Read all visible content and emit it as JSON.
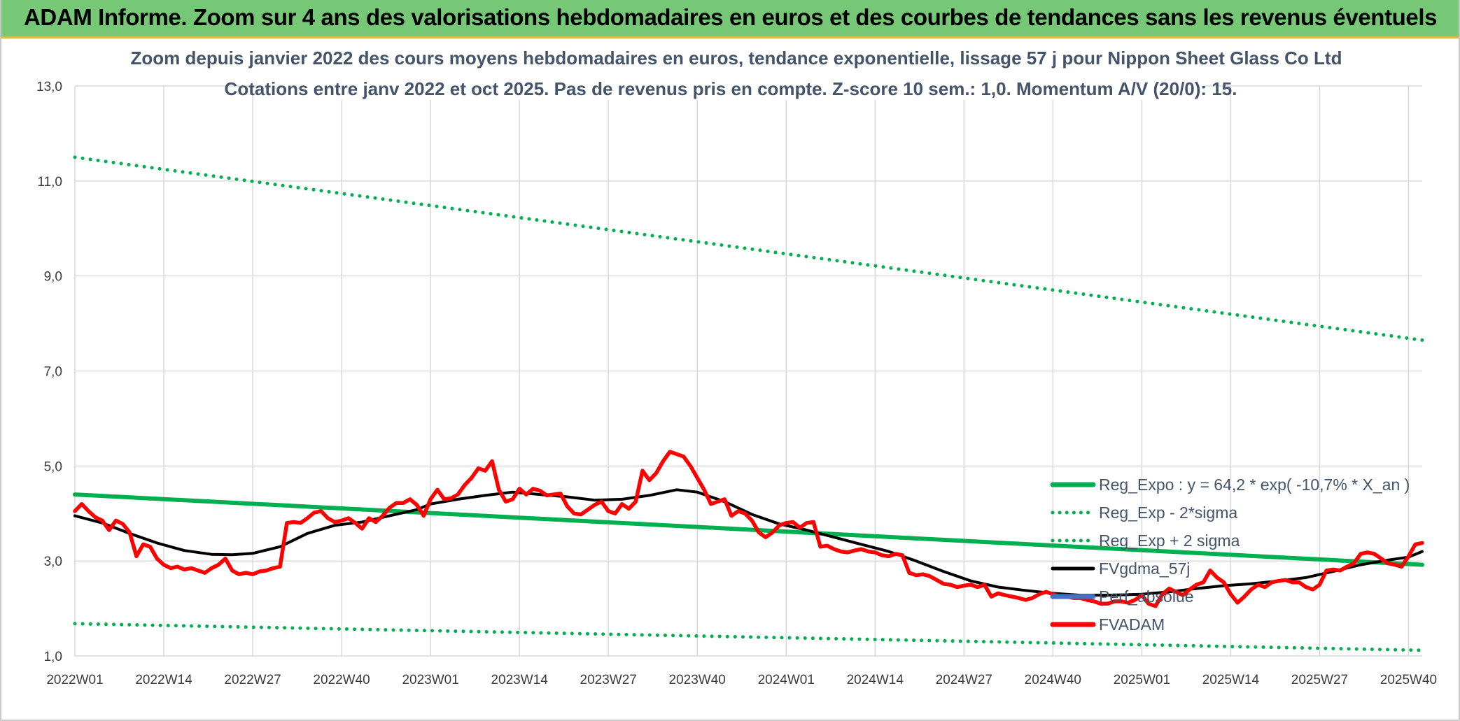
{
  "banner": {
    "title": "ADAM Informe. Zoom sur 4 ans des valorisations hebdomadaires en euros et des courbes de tendances sans les revenus éventuels"
  },
  "chart_data": {
    "type": "line",
    "title": "Zoom depuis janvier 2022 des cours moyens hebdomadaires en euros, tendance exponentielle, lissage 57 j pour Nippon Sheet Glass Co Ltd",
    "subtitle": "Cotations entre janv 2022 et oct 2025. Pas de revenus pris en compte. Z-score 10 sem.: 1,0. Momentum A/V (20/0): 15.",
    "xlabel": "",
    "ylabel": "",
    "ylim": [
      1.0,
      13.0
    ],
    "yticks": [
      "13,0",
      "11,0",
      "9,0",
      "7,0",
      "5,0",
      "3,0",
      "1,0"
    ],
    "grid": true,
    "legend_position": "bottom-right",
    "x_categories": [
      "2022W01",
      "2022W14",
      "2022W27",
      "2022W40",
      "2023W01",
      "2023W14",
      "2023W27",
      "2023W40",
      "2024W01",
      "2024W14",
      "2024W27",
      "2024W40",
      "2025W01",
      "2025W14",
      "2025W27",
      "2025W40"
    ],
    "series": [
      {
        "name": "Reg_Expo : y = 64,2 * exp( -10,7% *  X_an )",
        "color": "#00b050",
        "style": "solid",
        "points": [
          [
            "2022W01",
            4.4
          ],
          [
            "2025W42",
            2.92
          ]
        ]
      },
      {
        "name": "Reg_Exp - 2*sigma",
        "color": "#00b050",
        "style": "dotted",
        "points": [
          [
            "2022W01",
            1.68
          ],
          [
            "2025W42",
            1.12
          ]
        ]
      },
      {
        "name": "Reg_Exp + 2 sigma",
        "color": "#00b050",
        "style": "dotted",
        "points": [
          [
            "2022W01",
            11.5
          ],
          [
            "2025W42",
            7.65
          ]
        ]
      },
      {
        "name": "FVgdma_57j",
        "color": "#000000",
        "style": "solid",
        "points": [
          [
            "2022W01",
            3.95
          ],
          [
            "2022W05",
            3.8
          ],
          [
            "2022W09",
            3.58
          ],
          [
            "2022W13",
            3.38
          ],
          [
            "2022W17",
            3.22
          ],
          [
            "2022W21",
            3.14
          ],
          [
            "2022W24",
            3.13
          ],
          [
            "2022W27",
            3.16
          ],
          [
            "2022W31",
            3.3
          ],
          [
            "2022W35",
            3.58
          ],
          [
            "2022W39",
            3.75
          ],
          [
            "2022W43",
            3.82
          ],
          [
            "2022W47",
            3.95
          ],
          [
            "2022W51",
            4.08
          ],
          [
            "2023W01",
            4.2
          ],
          [
            "2023W05",
            4.3
          ],
          [
            "2023W09",
            4.38
          ],
          [
            "2023W13",
            4.45
          ],
          [
            "2023W17",
            4.4
          ],
          [
            "2023W21",
            4.35
          ],
          [
            "2023W25",
            4.28
          ],
          [
            "2023W29",
            4.3
          ],
          [
            "2023W33",
            4.38
          ],
          [
            "2023W37",
            4.5
          ],
          [
            "2023W40",
            4.45
          ],
          [
            "2023W44",
            4.25
          ],
          [
            "2023W48",
            3.98
          ],
          [
            "2023W52",
            3.78
          ],
          [
            "2024W04",
            3.65
          ],
          [
            "2024W08",
            3.5
          ],
          [
            "2024W12",
            3.35
          ],
          [
            "2024W16",
            3.2
          ],
          [
            "2024W20",
            3.0
          ],
          [
            "2024W24",
            2.78
          ],
          [
            "2024W28",
            2.58
          ],
          [
            "2024W32",
            2.45
          ],
          [
            "2024W36",
            2.38
          ],
          [
            "2024W40",
            2.32
          ],
          [
            "2024W44",
            2.28
          ],
          [
            "2024W48",
            2.28
          ],
          [
            "2025W01",
            2.3
          ],
          [
            "2025W05",
            2.35
          ],
          [
            "2025W09",
            2.42
          ],
          [
            "2025W13",
            2.48
          ],
          [
            "2025W17",
            2.52
          ],
          [
            "2025W21",
            2.58
          ],
          [
            "2025W25",
            2.65
          ],
          [
            "2025W29",
            2.78
          ],
          [
            "2025W33",
            2.92
          ],
          [
            "2025W37",
            3.02
          ],
          [
            "2025W40",
            3.08
          ],
          [
            "2025W42",
            3.2
          ]
        ]
      },
      {
        "name": "Perf_absolue",
        "color": "#4472c4",
        "style": "solid",
        "points": []
      },
      {
        "name": "FVADAM",
        "color": "#ff0000",
        "style": "solid",
        "points": [
          [
            "2022W01",
            4.05
          ],
          [
            "2022W02",
            4.2
          ],
          [
            "2022W03",
            4.05
          ],
          [
            "2022W04",
            3.92
          ],
          [
            "2022W05",
            3.85
          ],
          [
            "2022W06",
            3.65
          ],
          [
            "2022W07",
            3.85
          ],
          [
            "2022W08",
            3.78
          ],
          [
            "2022W09",
            3.6
          ],
          [
            "2022W10",
            3.1
          ],
          [
            "2022W11",
            3.35
          ],
          [
            "2022W12",
            3.3
          ],
          [
            "2022W13",
            3.05
          ],
          [
            "2022W14",
            2.92
          ],
          [
            "2022W15",
            2.85
          ],
          [
            "2022W16",
            2.88
          ],
          [
            "2022W17",
            2.82
          ],
          [
            "2022W18",
            2.85
          ],
          [
            "2022W19",
            2.8
          ],
          [
            "2022W20",
            2.75
          ],
          [
            "2022W21",
            2.85
          ],
          [
            "2022W22",
            2.92
          ],
          [
            "2022W23",
            3.05
          ],
          [
            "2022W24",
            2.8
          ],
          [
            "2022W25",
            2.72
          ],
          [
            "2022W26",
            2.75
          ],
          [
            "2022W27",
            2.72
          ],
          [
            "2022W28",
            2.78
          ],
          [
            "2022W29",
            2.8
          ],
          [
            "2022W30",
            2.85
          ],
          [
            "2022W31",
            2.88
          ],
          [
            "2022W32",
            3.8
          ],
          [
            "2022W33",
            3.82
          ],
          [
            "2022W34",
            3.8
          ],
          [
            "2022W35",
            3.9
          ],
          [
            "2022W36",
            4.02
          ],
          [
            "2022W37",
            4.05
          ],
          [
            "2022W38",
            3.9
          ],
          [
            "2022W39",
            3.82
          ],
          [
            "2022W40",
            3.85
          ],
          [
            "2022W41",
            3.9
          ],
          [
            "2022W42",
            3.8
          ],
          [
            "2022W43",
            3.68
          ],
          [
            "2022W44",
            3.9
          ],
          [
            "2022W45",
            3.82
          ],
          [
            "2022W46",
            3.95
          ],
          [
            "2022W47",
            4.12
          ],
          [
            "2022W48",
            4.22
          ],
          [
            "2022W49",
            4.22
          ],
          [
            "2022W50",
            4.3
          ],
          [
            "2022W51",
            4.18
          ],
          [
            "2022W52",
            3.95
          ],
          [
            "2023W01",
            4.3
          ],
          [
            "2023W02",
            4.5
          ],
          [
            "2023W03",
            4.3
          ],
          [
            "2023W04",
            4.32
          ],
          [
            "2023W05",
            4.4
          ],
          [
            "2023W06",
            4.6
          ],
          [
            "2023W07",
            4.75
          ],
          [
            "2023W08",
            4.95
          ],
          [
            "2023W09",
            4.9
          ],
          [
            "2023W10",
            5.1
          ],
          [
            "2023W11",
            4.5
          ],
          [
            "2023W12",
            4.25
          ],
          [
            "2023W13",
            4.3
          ],
          [
            "2023W14",
            4.52
          ],
          [
            "2023W15",
            4.4
          ],
          [
            "2023W16",
            4.52
          ],
          [
            "2023W17",
            4.48
          ],
          [
            "2023W18",
            4.38
          ],
          [
            "2023W19",
            4.4
          ],
          [
            "2023W20",
            4.42
          ],
          [
            "2023W21",
            4.15
          ],
          [
            "2023W22",
            4.0
          ],
          [
            "2023W23",
            3.98
          ],
          [
            "2023W24",
            4.08
          ],
          [
            "2023W25",
            4.18
          ],
          [
            "2023W26",
            4.25
          ],
          [
            "2023W27",
            4.05
          ],
          [
            "2023W28",
            4.0
          ],
          [
            "2023W29",
            4.2
          ],
          [
            "2023W30",
            4.1
          ],
          [
            "2023W31",
            4.25
          ],
          [
            "2023W32",
            4.9
          ],
          [
            "2023W33",
            4.7
          ],
          [
            "2023W34",
            4.85
          ],
          [
            "2023W35",
            5.1
          ],
          [
            "2023W36",
            5.3
          ],
          [
            "2023W37",
            5.25
          ],
          [
            "2023W38",
            5.2
          ],
          [
            "2023W39",
            5.0
          ],
          [
            "2023W40",
            4.75
          ],
          [
            "2023W41",
            4.5
          ],
          [
            "2023W42",
            4.2
          ],
          [
            "2023W43",
            4.25
          ],
          [
            "2023W44",
            4.3
          ],
          [
            "2023W45",
            3.95
          ],
          [
            "2023W46",
            4.05
          ],
          [
            "2023W47",
            4.0
          ],
          [
            "2023W48",
            3.85
          ],
          [
            "2023W49",
            3.6
          ],
          [
            "2023W50",
            3.5
          ],
          [
            "2023W51",
            3.6
          ],
          [
            "2023W52",
            3.75
          ],
          [
            "2024W01",
            3.8
          ],
          [
            "2024W02",
            3.82
          ],
          [
            "2024W03",
            3.7
          ],
          [
            "2024W04",
            3.8
          ],
          [
            "2024W05",
            3.82
          ],
          [
            "2024W06",
            3.3
          ],
          [
            "2024W07",
            3.32
          ],
          [
            "2024W08",
            3.25
          ],
          [
            "2024W09",
            3.2
          ],
          [
            "2024W10",
            3.18
          ],
          [
            "2024W11",
            3.22
          ],
          [
            "2024W12",
            3.25
          ],
          [
            "2024W13",
            3.2
          ],
          [
            "2024W14",
            3.18
          ],
          [
            "2024W15",
            3.12
          ],
          [
            "2024W16",
            3.1
          ],
          [
            "2024W17",
            3.15
          ],
          [
            "2024W18",
            3.12
          ],
          [
            "2024W19",
            2.75
          ],
          [
            "2024W20",
            2.7
          ],
          [
            "2024W21",
            2.72
          ],
          [
            "2024W22",
            2.68
          ],
          [
            "2024W23",
            2.6
          ],
          [
            "2024W24",
            2.52
          ],
          [
            "2024W25",
            2.5
          ],
          [
            "2024W26",
            2.45
          ],
          [
            "2024W27",
            2.48
          ],
          [
            "2024W28",
            2.5
          ],
          [
            "2024W29",
            2.45
          ],
          [
            "2024W30",
            2.5
          ],
          [
            "2024W31",
            2.25
          ],
          [
            "2024W32",
            2.32
          ],
          [
            "2024W33",
            2.28
          ],
          [
            "2024W34",
            2.25
          ],
          [
            "2024W35",
            2.22
          ],
          [
            "2024W36",
            2.18
          ],
          [
            "2024W37",
            2.22
          ],
          [
            "2024W38",
            2.3
          ],
          [
            "2024W39",
            2.35
          ],
          [
            "2024W40",
            2.3
          ],
          [
            "2024W41",
            2.25
          ],
          [
            "2024W42",
            2.25
          ],
          [
            "2024W43",
            2.22
          ],
          [
            "2024W44",
            2.22
          ],
          [
            "2024W45",
            2.18
          ],
          [
            "2024W46",
            2.15
          ],
          [
            "2024W47",
            2.1
          ],
          [
            "2024W48",
            2.1
          ],
          [
            "2024W49",
            2.15
          ],
          [
            "2024W50",
            2.15
          ],
          [
            "2024W51",
            2.12
          ],
          [
            "2024W52",
            2.18
          ],
          [
            "2025W01",
            2.28
          ],
          [
            "2025W02",
            2.1
          ],
          [
            "2025W03",
            2.05
          ],
          [
            "2025W04",
            2.3
          ],
          [
            "2025W05",
            2.42
          ],
          [
            "2025W06",
            2.35
          ],
          [
            "2025W07",
            2.28
          ],
          [
            "2025W08",
            2.4
          ],
          [
            "2025W09",
            2.5
          ],
          [
            "2025W10",
            2.55
          ],
          [
            "2025W11",
            2.8
          ],
          [
            "2025W12",
            2.65
          ],
          [
            "2025W13",
            2.55
          ],
          [
            "2025W14",
            2.3
          ],
          [
            "2025W15",
            2.12
          ],
          [
            "2025W16",
            2.25
          ],
          [
            "2025W17",
            2.4
          ],
          [
            "2025W18",
            2.5
          ],
          [
            "2025W19",
            2.45
          ],
          [
            "2025W20",
            2.55
          ],
          [
            "2025W21",
            2.58
          ],
          [
            "2025W22",
            2.6
          ],
          [
            "2025W23",
            2.55
          ],
          [
            "2025W24",
            2.55
          ],
          [
            "2025W25",
            2.45
          ],
          [
            "2025W26",
            2.4
          ],
          [
            "2025W27",
            2.5
          ],
          [
            "2025W28",
            2.8
          ],
          [
            "2025W29",
            2.82
          ],
          [
            "2025W30",
            2.8
          ],
          [
            "2025W31",
            2.88
          ],
          [
            "2025W32",
            2.95
          ],
          [
            "2025W33",
            3.15
          ],
          [
            "2025W34",
            3.18
          ],
          [
            "2025W35",
            3.15
          ],
          [
            "2025W36",
            3.05
          ],
          [
            "2025W37",
            2.95
          ],
          [
            "2025W38",
            2.92
          ],
          [
            "2025W39",
            2.88
          ],
          [
            "2025W40",
            3.1
          ],
          [
            "2025W41",
            3.35
          ],
          [
            "2025W42",
            3.38
          ]
        ]
      }
    ]
  }
}
